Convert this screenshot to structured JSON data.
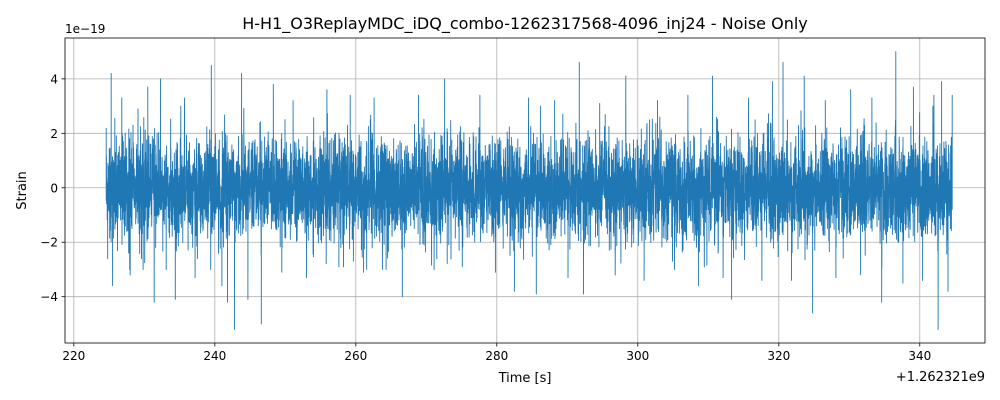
{
  "chart_data": {
    "type": "line",
    "title": "H-H1_O3ReplayMDC_iDQ_combo-1262317568-4096_inj24 - Noise Only",
    "xlabel": "Time [s]",
    "ylabel": "Strain",
    "x_offset_label": "+1.262321e9",
    "y_scale_label": "1e−19",
    "xlim": [
      218.75,
      349.25
    ],
    "ylim": [
      -5.7,
      5.5
    ],
    "x_ticks": [
      220,
      240,
      260,
      280,
      300,
      320,
      340
    ],
    "x_tick_labels": [
      "220",
      "240",
      "260",
      "280",
      "300",
      "320",
      "340"
    ],
    "y_ticks": [
      -4,
      -2,
      0,
      2,
      4
    ],
    "y_tick_labels": [
      "−4",
      "−2",
      "0",
      "2",
      "4"
    ],
    "grid": true,
    "series": [
      {
        "color": "#1f77b4",
        "x_range": [
          224.6,
          344.6
        ],
        "typical_amplitude": 1.5,
        "peaks": [
          {
            "x": 224.6,
            "y": 2.2
          },
          {
            "x": 224.8,
            "y": -2.6
          },
          {
            "x": 225.3,
            "y": 4.2
          },
          {
            "x": 225.5,
            "y": -3.6
          },
          {
            "x": 226.8,
            "y": 3.3
          },
          {
            "x": 228.0,
            "y": -3.2
          },
          {
            "x": 229.1,
            "y": 2.9
          },
          {
            "x": 229.6,
            "y": -2.6
          },
          {
            "x": 230.5,
            "y": 3.7
          },
          {
            "x": 231.4,
            "y": -4.2
          },
          {
            "x": 232.3,
            "y": 4.0
          },
          {
            "x": 233.1,
            "y": -3.0
          },
          {
            "x": 234.4,
            "y": -4.1
          },
          {
            "x": 235.7,
            "y": 3.3
          },
          {
            "x": 237.2,
            "y": -3.3
          },
          {
            "x": 239.5,
            "y": 4.5
          },
          {
            "x": 241.0,
            "y": -3.6
          },
          {
            "x": 241.8,
            "y": -4.2
          },
          {
            "x": 242.8,
            "y": -5.2
          },
          {
            "x": 243.8,
            "y": 4.2
          },
          {
            "x": 244.7,
            "y": -4.1
          },
          {
            "x": 246.6,
            "y": -5.0
          },
          {
            "x": 248.3,
            "y": 3.8
          },
          {
            "x": 249.5,
            "y": -3.1
          },
          {
            "x": 251.1,
            "y": 3.2
          },
          {
            "x": 253.0,
            "y": -3.3
          },
          {
            "x": 255.9,
            "y": 3.6
          },
          {
            "x": 257.6,
            "y": -2.9
          },
          {
            "x": 259.2,
            "y": 3.4
          },
          {
            "x": 261.1,
            "y": -3.1
          },
          {
            "x": 262.6,
            "y": 3.3
          },
          {
            "x": 264.3,
            "y": -3.0
          },
          {
            "x": 266.6,
            "y": -4.0
          },
          {
            "x": 268.9,
            "y": 3.4
          },
          {
            "x": 271.1,
            "y": -3.0
          },
          {
            "x": 272.6,
            "y": 4.0
          },
          {
            "x": 275.1,
            "y": -2.9
          },
          {
            "x": 277.6,
            "y": 3.4
          },
          {
            "x": 279.8,
            "y": -3.1
          },
          {
            "x": 282.5,
            "y": -3.8
          },
          {
            "x": 284.5,
            "y": 3.3
          },
          {
            "x": 285.6,
            "y": -3.9
          },
          {
            "x": 288.2,
            "y": 3.2
          },
          {
            "x": 290.1,
            "y": -3.3
          },
          {
            "x": 291.7,
            "y": 4.6
          },
          {
            "x": 292.3,
            "y": -3.9
          },
          {
            "x": 294.6,
            "y": 3.1
          },
          {
            "x": 296.8,
            "y": -3.2
          },
          {
            "x": 298.3,
            "y": 4.1
          },
          {
            "x": 300.9,
            "y": -3.4
          },
          {
            "x": 302.8,
            "y": 3.2
          },
          {
            "x": 305.2,
            "y": -3.0
          },
          {
            "x": 307.1,
            "y": 3.4
          },
          {
            "x": 308.6,
            "y": -3.6
          },
          {
            "x": 310.6,
            "y": 4.1
          },
          {
            "x": 312.1,
            "y": -3.3
          },
          {
            "x": 313.3,
            "y": -4.1
          },
          {
            "x": 315.7,
            "y": 3.3
          },
          {
            "x": 317.6,
            "y": -3.4
          },
          {
            "x": 319.1,
            "y": 3.9
          },
          {
            "x": 320.6,
            "y": 4.6
          },
          {
            "x": 321.8,
            "y": -3.4
          },
          {
            "x": 323.6,
            "y": 4.1
          },
          {
            "x": 324.8,
            "y": -4.6
          },
          {
            "x": 326.6,
            "y": 3.2
          },
          {
            "x": 328.1,
            "y": -3.3
          },
          {
            "x": 330.2,
            "y": 3.6
          },
          {
            "x": 331.6,
            "y": -3.2
          },
          {
            "x": 333.2,
            "y": 3.3
          },
          {
            "x": 334.6,
            "y": -4.2
          },
          {
            "x": 336.6,
            "y": 5.0
          },
          {
            "x": 337.6,
            "y": -3.5
          },
          {
            "x": 339.1,
            "y": 3.7
          },
          {
            "x": 340.4,
            "y": -3.4
          },
          {
            "x": 342.0,
            "y": 3.4
          },
          {
            "x": 342.6,
            "y": -5.2
          },
          {
            "x": 343.1,
            "y": 3.9
          },
          {
            "x": 344.0,
            "y": -3.8
          },
          {
            "x": 344.6,
            "y": 3.4
          }
        ]
      }
    ]
  }
}
